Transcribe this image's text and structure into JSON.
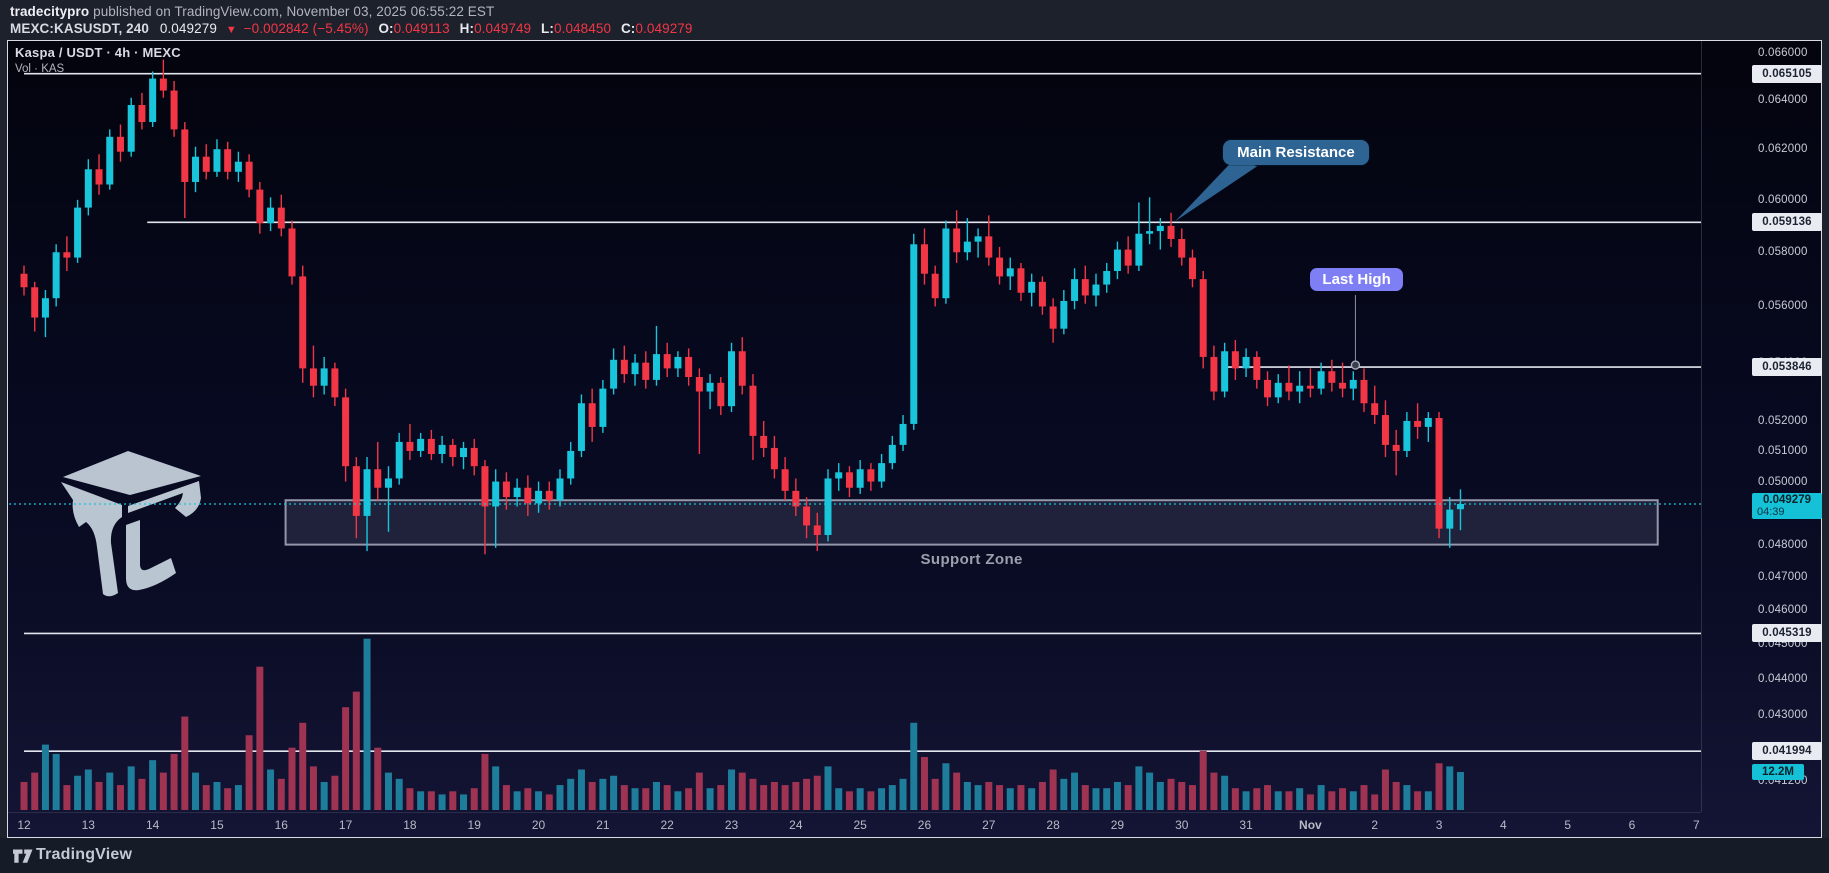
{
  "header": {
    "author": "tradecitypro",
    "published": " published on TradingView.com, November 03, 2025 06:55:22 EST",
    "symbol_interval": "MEXC:KASUSDT, 240",
    "last_price": "0.049279",
    "direction_icon": "▼",
    "change": "−0.002842 (−5.45%)",
    "o_label": "O:",
    "o_value": "0.049113",
    "h_label": "H:",
    "h_value": "0.049749",
    "l_label": "L:",
    "l_value": "0.048450",
    "c_label": "C:",
    "c_value": "0.049279"
  },
  "legend": {
    "title": "Kaspa / USDT · 4h · MEXC",
    "indicator": "Vol · KAS"
  },
  "annotations": {
    "main_resistance": {
      "text": "Main Resistance",
      "anchor_index": 107.2,
      "anchor_price": 0.059136
    },
    "last_high": {
      "text": "Last High",
      "anchor_index": 124.2,
      "anchor_price": 0.053846
    },
    "support_zone": {
      "text": "Support Zone",
      "price_top": 0.0494,
      "price_bottom": 0.048,
      "from_index": 24.4,
      "to_index": 152.4
    }
  },
  "price_axis": {
    "ticks": [
      {
        "label": "0.066000",
        "value": 0.066
      },
      {
        "label": "0.064000",
        "value": 0.064
      },
      {
        "label": "0.062000",
        "value": 0.062
      },
      {
        "label": "0.060000",
        "value": 0.06
      },
      {
        "label": "0.058000",
        "value": 0.058
      },
      {
        "label": "0.056000",
        "value": 0.056
      },
      {
        "label": "0.054000",
        "value": 0.054
      },
      {
        "label": "0.052000",
        "value": 0.052
      },
      {
        "label": "0.051000",
        "value": 0.051
      },
      {
        "label": "0.050000",
        "value": 0.05
      },
      {
        "label": "0.048000",
        "value": 0.048
      },
      {
        "label": "0.047000",
        "value": 0.047
      },
      {
        "label": "0.046000",
        "value": 0.046
      },
      {
        "label": "0.045000",
        "value": 0.045
      },
      {
        "label": "0.044000",
        "value": 0.044
      },
      {
        "label": "0.043000",
        "value": 0.043
      },
      {
        "label": "0.041200",
        "value": 0.0412
      }
    ],
    "level_labels": [
      {
        "label": "0.065105",
        "value": 0.065105
      },
      {
        "label": "0.059136",
        "value": 0.059136
      },
      {
        "label": "0.053846",
        "value": 0.053846
      },
      {
        "label": "0.045319",
        "value": 0.045319
      },
      {
        "label": "0.041994",
        "value": 0.041994
      }
    ],
    "current": {
      "label": "0.049279",
      "value": 0.049279,
      "countdown": "04:39"
    },
    "volume_current": {
      "label": "12.2M",
      "value": 12.2
    }
  },
  "x_axis": {
    "labels": [
      {
        "text": "12",
        "index": 0
      },
      {
        "text": "13",
        "index": 6
      },
      {
        "text": "14",
        "index": 12
      },
      {
        "text": "15",
        "index": 18
      },
      {
        "text": "16",
        "index": 24
      },
      {
        "text": "17",
        "index": 30
      },
      {
        "text": "18",
        "index": 36
      },
      {
        "text": "19",
        "index": 42
      },
      {
        "text": "20",
        "index": 48
      },
      {
        "text": "21",
        "index": 54
      },
      {
        "text": "22",
        "index": 60
      },
      {
        "text": "23",
        "index": 66
      },
      {
        "text": "24",
        "index": 72
      },
      {
        "text": "25",
        "index": 78
      },
      {
        "text": "26",
        "index": 84
      },
      {
        "text": "27",
        "index": 90
      },
      {
        "text": "28",
        "index": 96
      },
      {
        "text": "29",
        "index": 102
      },
      {
        "text": "30",
        "index": 108
      },
      {
        "text": "31",
        "index": 114
      },
      {
        "text": "Nov",
        "index": 120
      },
      {
        "text": "2",
        "index": 126
      },
      {
        "text": "3",
        "index": 132
      },
      {
        "text": "4",
        "index": 138
      },
      {
        "text": "5",
        "index": 144
      },
      {
        "text": "6",
        "index": 150
      },
      {
        "text": "7",
        "index": 156
      }
    ]
  },
  "footer": {
    "brand": "TradingView"
  },
  "watermark": {
    "name": "tradecitypro-cube-logo"
  },
  "colors": {
    "up": "#18c5da",
    "down": "#f23645",
    "vol_up": "#1e7d9b",
    "vol_down": "#9e3352",
    "level_line": "#e3e6ee",
    "current_line": "#18c5da",
    "callout_bg": "#2e6494",
    "last_high_bg": "#7e7ef5",
    "zone_fill": "rgba(160,166,192,0.15)",
    "zone_border": "rgba(190,194,210,0.75)",
    "label_box_bg": "#e9ebf2",
    "label_box_text": "#1b2230",
    "current_label_bg": "#15c1d6"
  },
  "chart_data": {
    "type": "candlestick",
    "title": "Kaspa / USDT · 4h · MEXC",
    "symbol": "MEXC:KASUSDT",
    "interval": "4h",
    "start": "2025-10-12 00:00",
    "step_hours": 4,
    "price_scale": "log",
    "ylim": [
      0.0412,
      0.0662
    ],
    "current_price": 0.049279,
    "volume_unit": "millions",
    "levels": [
      {
        "price": 0.065105,
        "from_index": 0
      },
      {
        "price": 0.059136,
        "from_index": 11.5
      },
      {
        "price": 0.053846,
        "from_index": 111.7
      },
      {
        "price": 0.045319,
        "from_index": 0
      },
      {
        "price": 0.041994,
        "from_index": 0
      }
    ],
    "candles": [
      [
        0.0572,
        0.0575,
        0.0564,
        0.0567,
        9
      ],
      [
        0.0567,
        0.0569,
        0.0551,
        0.0556,
        12
      ],
      [
        0.0556,
        0.0566,
        0.0549,
        0.0563,
        21
      ],
      [
        0.0563,
        0.0583,
        0.056,
        0.058,
        18
      ],
      [
        0.058,
        0.0586,
        0.0573,
        0.0578,
        8
      ],
      [
        0.0578,
        0.06,
        0.0576,
        0.0597,
        11
      ],
      [
        0.0597,
        0.0616,
        0.0594,
        0.0612,
        13
      ],
      [
        0.0612,
        0.0618,
        0.0602,
        0.0606,
        9
      ],
      [
        0.0606,
        0.0628,
        0.0604,
        0.0625,
        12
      ],
      [
        0.0625,
        0.063,
        0.0615,
        0.0619,
        8
      ],
      [
        0.0619,
        0.0641,
        0.0617,
        0.0638,
        14
      ],
      [
        0.0638,
        0.0643,
        0.0628,
        0.0631,
        10
      ],
      [
        0.0631,
        0.0652,
        0.0629,
        0.0649,
        16
      ],
      [
        0.0649,
        0.0657,
        0.0641,
        0.0644,
        12
      ],
      [
        0.0644,
        0.0648,
        0.0625,
        0.0628,
        18
      ],
      [
        0.0628,
        0.0631,
        0.0593,
        0.0607,
        30
      ],
      [
        0.0607,
        0.0621,
        0.0603,
        0.0617,
        12
      ],
      [
        0.0617,
        0.0622,
        0.0608,
        0.0611,
        8
      ],
      [
        0.0611,
        0.0624,
        0.0609,
        0.062,
        9
      ],
      [
        0.062,
        0.0623,
        0.0608,
        0.0611,
        7
      ],
      [
        0.0611,
        0.0619,
        0.0607,
        0.0615,
        8
      ],
      [
        0.0615,
        0.0618,
        0.0601,
        0.0604,
        24
      ],
      [
        0.0604,
        0.0607,
        0.0587,
        0.0591,
        46
      ],
      [
        0.0591,
        0.0601,
        0.0588,
        0.0597,
        13
      ],
      [
        0.0597,
        0.0602,
        0.0586,
        0.0589,
        10
      ],
      [
        0.0589,
        0.0592,
        0.0568,
        0.0571,
        20
      ],
      [
        0.0571,
        0.0575,
        0.0533,
        0.0538,
        28
      ],
      [
        0.0538,
        0.0546,
        0.0528,
        0.0532,
        14
      ],
      [
        0.0532,
        0.0542,
        0.0529,
        0.0538,
        9
      ],
      [
        0.0538,
        0.054,
        0.0525,
        0.0528,
        11
      ],
      [
        0.0528,
        0.0531,
        0.05,
        0.0505,
        33
      ],
      [
        0.0505,
        0.0508,
        0.0482,
        0.0489,
        38
      ],
      [
        0.0489,
        0.0508,
        0.0478,
        0.0504,
        55
      ],
      [
        0.0504,
        0.0513,
        0.0494,
        0.0498,
        20
      ],
      [
        0.0498,
        0.0505,
        0.0484,
        0.0501,
        12
      ],
      [
        0.0501,
        0.0516,
        0.0499,
        0.0513,
        10
      ],
      [
        0.0513,
        0.0519,
        0.0507,
        0.051,
        7
      ],
      [
        0.051,
        0.0516,
        0.0508,
        0.0514,
        6
      ],
      [
        0.0514,
        0.0517,
        0.0507,
        0.0509,
        6
      ],
      [
        0.0509,
        0.0515,
        0.0506,
        0.0512,
        5
      ],
      [
        0.0512,
        0.0514,
        0.0505,
        0.0508,
        6
      ],
      [
        0.0508,
        0.0513,
        0.0504,
        0.0511,
        5
      ],
      [
        0.0511,
        0.0514,
        0.0502,
        0.0505,
        7
      ],
      [
        0.0505,
        0.0507,
        0.0477,
        0.0492,
        18
      ],
      [
        0.0492,
        0.0504,
        0.0479,
        0.05,
        14
      ],
      [
        0.05,
        0.0503,
        0.0491,
        0.0495,
        8
      ],
      [
        0.0495,
        0.0501,
        0.0492,
        0.0498,
        6
      ],
      [
        0.0498,
        0.0502,
        0.0489,
        0.0493,
        7
      ],
      [
        0.0493,
        0.05,
        0.049,
        0.0497,
        6
      ],
      [
        0.0497,
        0.05,
        0.0491,
        0.0494,
        5
      ],
      [
        0.0494,
        0.0504,
        0.0492,
        0.0501,
        8
      ],
      [
        0.0501,
        0.0513,
        0.0499,
        0.051,
        10
      ],
      [
        0.051,
        0.0529,
        0.0508,
        0.0526,
        13
      ],
      [
        0.0526,
        0.0531,
        0.0513,
        0.0518,
        9
      ],
      [
        0.0518,
        0.0534,
        0.0516,
        0.0531,
        10
      ],
      [
        0.0531,
        0.0545,
        0.0529,
        0.0541,
        11
      ],
      [
        0.0541,
        0.0546,
        0.0533,
        0.0536,
        8
      ],
      [
        0.0536,
        0.0543,
        0.0532,
        0.054,
        7
      ],
      [
        0.054,
        0.0544,
        0.0531,
        0.0534,
        7
      ],
      [
        0.0534,
        0.0553,
        0.0532,
        0.0543,
        9
      ],
      [
        0.0543,
        0.0547,
        0.0535,
        0.0538,
        8
      ],
      [
        0.0538,
        0.0544,
        0.0535,
        0.0542,
        6
      ],
      [
        0.0542,
        0.0545,
        0.0532,
        0.0535,
        7
      ],
      [
        0.0535,
        0.0538,
        0.0509,
        0.053,
        12
      ],
      [
        0.053,
        0.0536,
        0.0524,
        0.0533,
        7
      ],
      [
        0.0533,
        0.0535,
        0.0522,
        0.0525,
        8
      ],
      [
        0.0525,
        0.0547,
        0.0523,
        0.0544,
        13
      ],
      [
        0.0544,
        0.0549,
        0.0529,
        0.0532,
        12
      ],
      [
        0.0532,
        0.0536,
        0.0507,
        0.0515,
        10
      ],
      [
        0.0515,
        0.052,
        0.0508,
        0.0511,
        8
      ],
      [
        0.0511,
        0.0515,
        0.0501,
        0.0504,
        9
      ],
      [
        0.0504,
        0.0508,
        0.0494,
        0.0497,
        8
      ],
      [
        0.0497,
        0.0501,
        0.0489,
        0.0492,
        9
      ],
      [
        0.0492,
        0.0495,
        0.0482,
        0.0486,
        10
      ],
      [
        0.0486,
        0.049,
        0.0478,
        0.0483,
        11
      ],
      [
        0.0483,
        0.0504,
        0.0481,
        0.0501,
        14
      ],
      [
        0.0501,
        0.0506,
        0.0497,
        0.0503,
        7
      ],
      [
        0.0503,
        0.0505,
        0.0495,
        0.0498,
        6
      ],
      [
        0.0498,
        0.0507,
        0.0496,
        0.0504,
        7
      ],
      [
        0.0504,
        0.0506,
        0.0497,
        0.05,
        6
      ],
      [
        0.05,
        0.0509,
        0.0498,
        0.0506,
        7
      ],
      [
        0.0506,
        0.0515,
        0.0504,
        0.0512,
        8
      ],
      [
        0.0512,
        0.0522,
        0.051,
        0.0519,
        10
      ],
      [
        0.0519,
        0.0587,
        0.0517,
        0.0583,
        28
      ],
      [
        0.0583,
        0.0589,
        0.0568,
        0.0572,
        17
      ],
      [
        0.0572,
        0.0575,
        0.056,
        0.0563,
        10
      ],
      [
        0.0563,
        0.0592,
        0.0561,
        0.0589,
        15
      ],
      [
        0.0589,
        0.0596,
        0.0576,
        0.058,
        12
      ],
      [
        0.058,
        0.0593,
        0.0577,
        0.0584,
        9
      ],
      [
        0.0584,
        0.0589,
        0.0578,
        0.0586,
        8
      ],
      [
        0.0586,
        0.0594,
        0.0575,
        0.0578,
        9
      ],
      [
        0.0578,
        0.0582,
        0.0568,
        0.0571,
        8
      ],
      [
        0.0571,
        0.0578,
        0.0566,
        0.0574,
        7
      ],
      [
        0.0574,
        0.0576,
        0.0562,
        0.0565,
        8
      ],
      [
        0.0565,
        0.0572,
        0.056,
        0.0569,
        7
      ],
      [
        0.0569,
        0.0571,
        0.0557,
        0.056,
        9
      ],
      [
        0.056,
        0.0563,
        0.0547,
        0.0552,
        13
      ],
      [
        0.0552,
        0.0566,
        0.055,
        0.0562,
        10
      ],
      [
        0.0562,
        0.0574,
        0.0559,
        0.057,
        12
      ],
      [
        0.057,
        0.0575,
        0.0561,
        0.0564,
        8
      ],
      [
        0.0564,
        0.0572,
        0.056,
        0.0568,
        7
      ],
      [
        0.0568,
        0.0576,
        0.0565,
        0.0573,
        7
      ],
      [
        0.0573,
        0.0584,
        0.057,
        0.0581,
        9
      ],
      [
        0.0581,
        0.0586,
        0.0572,
        0.0575,
        8
      ],
      [
        0.0575,
        0.0599,
        0.0573,
        0.0587,
        14
      ],
      [
        0.0587,
        0.0601,
        0.0583,
        0.0588,
        12
      ],
      [
        0.0588,
        0.0593,
        0.0581,
        0.059,
        9
      ],
      [
        0.059,
        0.0595,
        0.0582,
        0.0585,
        10
      ],
      [
        0.0585,
        0.0589,
        0.0575,
        0.0578,
        9
      ],
      [
        0.0578,
        0.0581,
        0.0567,
        0.057,
        8
      ],
      [
        0.057,
        0.0573,
        0.0538,
        0.0542,
        19
      ],
      [
        0.0542,
        0.0546,
        0.0527,
        0.053,
        12
      ],
      [
        0.053,
        0.0547,
        0.0528,
        0.0544,
        11
      ],
      [
        0.0544,
        0.0548,
        0.0534,
        0.0538,
        7
      ],
      [
        0.0538,
        0.0545,
        0.0535,
        0.0542,
        6
      ],
      [
        0.0542,
        0.0544,
        0.0531,
        0.0534,
        7
      ],
      [
        0.0534,
        0.0537,
        0.0525,
        0.0528,
        8
      ],
      [
        0.0528,
        0.0536,
        0.0526,
        0.0533,
        6
      ],
      [
        0.0533,
        0.0539,
        0.0527,
        0.053,
        6
      ],
      [
        0.053,
        0.0537,
        0.0526,
        0.0532,
        7
      ],
      [
        0.0532,
        0.0538,
        0.0528,
        0.0531,
        5
      ],
      [
        0.0531,
        0.054,
        0.0529,
        0.0537,
        8
      ],
      [
        0.0537,
        0.0541,
        0.053,
        0.0533,
        6
      ],
      [
        0.0533,
        0.054,
        0.0528,
        0.0531,
        7
      ],
      [
        0.0531,
        0.0537,
        0.0527,
        0.0534,
        6
      ],
      [
        0.0534,
        0.0538,
        0.0523,
        0.0526,
        8
      ],
      [
        0.0526,
        0.0532,
        0.0519,
        0.0522,
        5
      ],
      [
        0.0522,
        0.0527,
        0.0508,
        0.0512,
        13
      ],
      [
        0.0512,
        0.0517,
        0.0502,
        0.051,
        9
      ],
      [
        0.051,
        0.0523,
        0.0508,
        0.052,
        8
      ],
      [
        0.052,
        0.0526,
        0.0514,
        0.0518,
        6
      ],
      [
        0.0518,
        0.0523,
        0.0513,
        0.0521,
        6
      ],
      [
        0.0521,
        0.0523,
        0.0482,
        0.0485,
        15
      ],
      [
        0.0485,
        0.0495,
        0.0479,
        0.0491,
        14
      ],
      [
        0.049113,
        0.049749,
        0.04845,
        0.049279,
        12.2
      ]
    ]
  }
}
